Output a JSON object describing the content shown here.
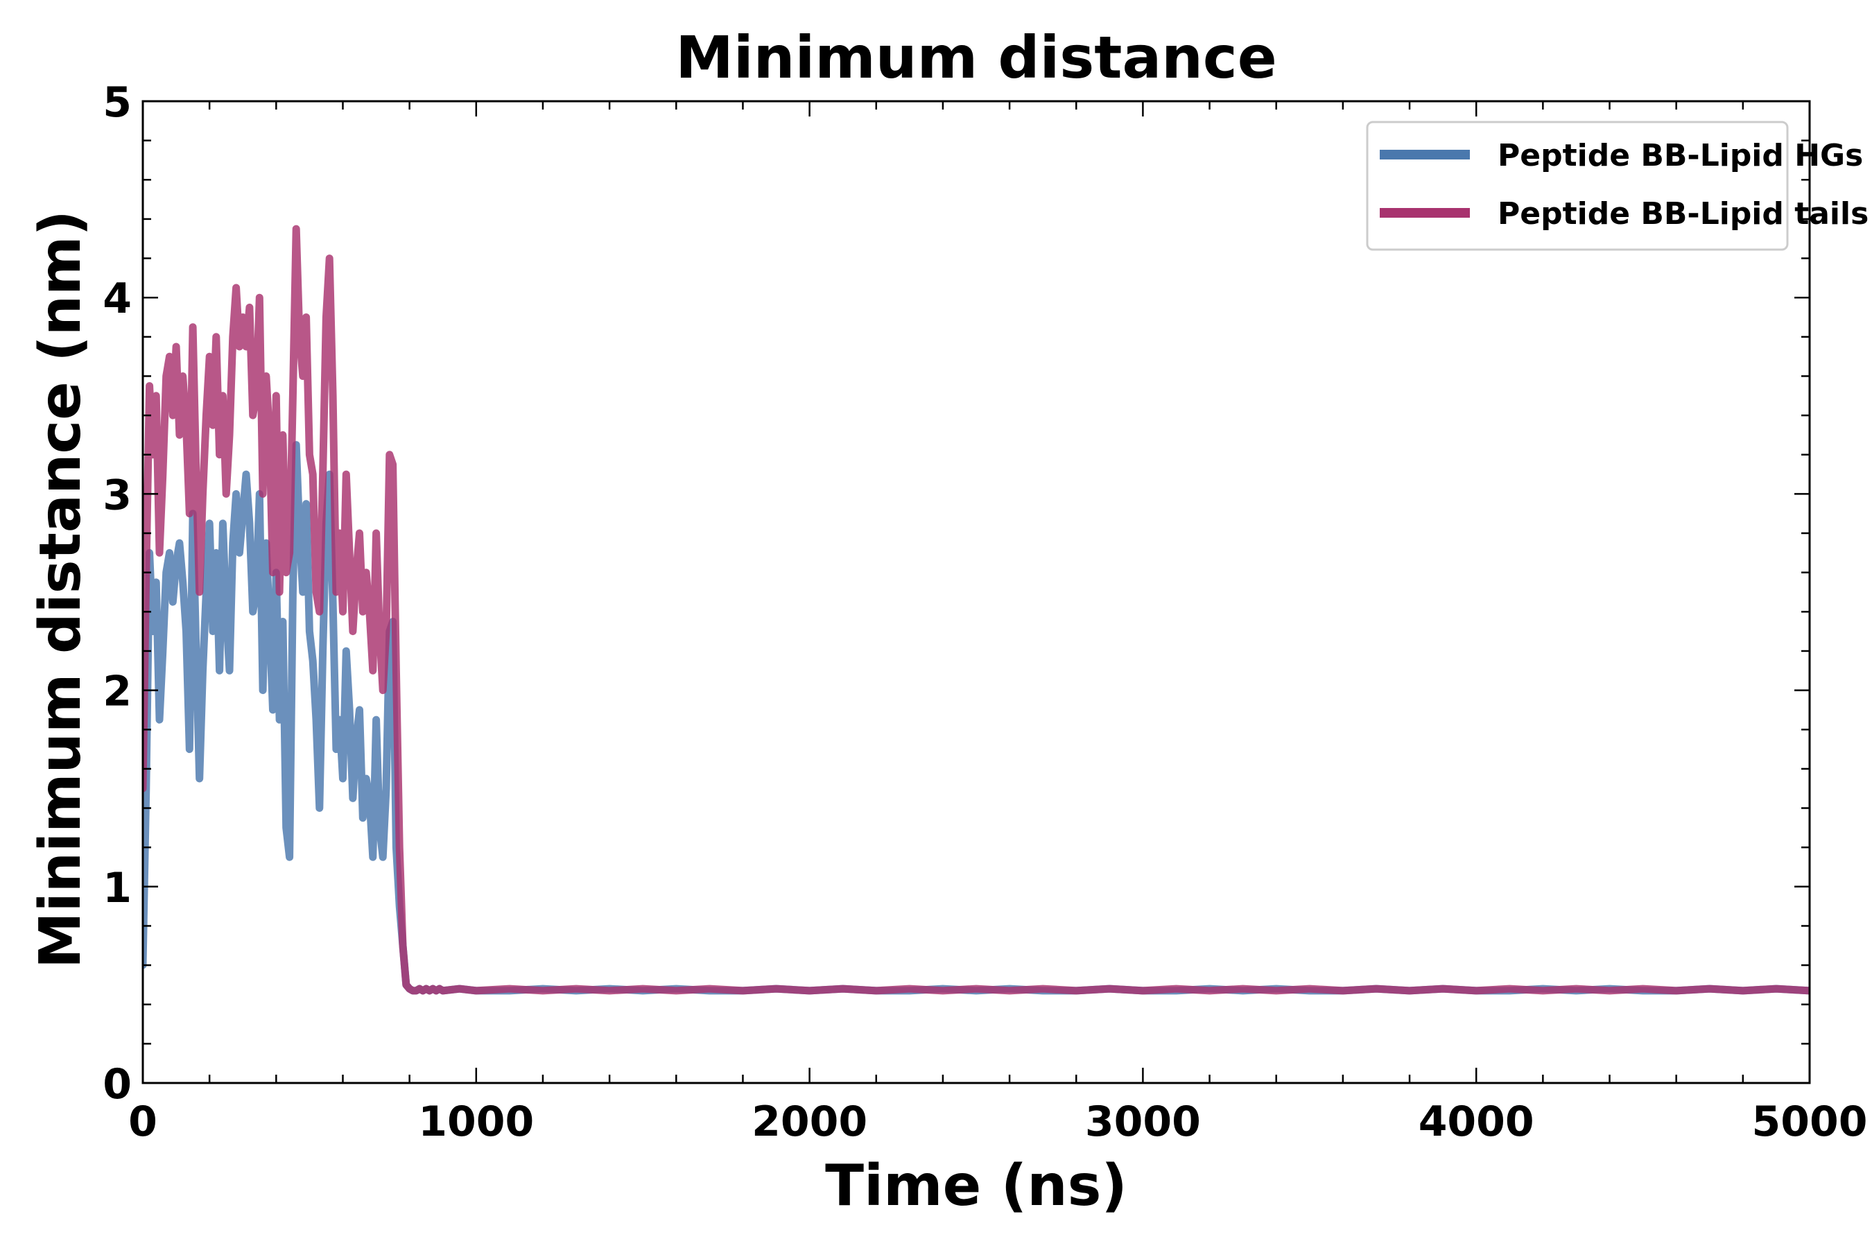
{
  "chart_data": {
    "type": "line",
    "title": "Minimum distance",
    "xlabel": "Time (ns)",
    "ylabel": "Minimum distance (nm)",
    "xlim": [
      0,
      5000
    ],
    "ylim": [
      0,
      5
    ],
    "xticks": [
      0,
      1000,
      2000,
      3000,
      4000,
      5000
    ],
    "xtick_labels": [
      "0",
      "1000",
      "2000",
      "3000",
      "4000",
      "5000"
    ],
    "xminor_step": 200,
    "yticks": [
      0,
      1,
      2,
      3,
      4,
      5
    ],
    "ytick_labels": [
      "0",
      "1",
      "2",
      "3",
      "4",
      "5"
    ],
    "yminor_step": 0.2,
    "grid": false,
    "legend_position": "top-right",
    "series": [
      {
        "name": "Peptide BB-Lipid HGs",
        "color": "#4a78ad",
        "x": [
          0,
          10,
          20,
          30,
          40,
          50,
          60,
          70,
          80,
          90,
          100,
          110,
          120,
          130,
          140,
          150,
          160,
          170,
          180,
          190,
          200,
          210,
          220,
          230,
          240,
          250,
          260,
          270,
          280,
          290,
          300,
          310,
          320,
          330,
          340,
          350,
          360,
          370,
          380,
          390,
          400,
          410,
          420,
          430,
          440,
          450,
          460,
          470,
          480,
          490,
          500,
          510,
          520,
          530,
          540,
          550,
          560,
          570,
          580,
          590,
          600,
          610,
          620,
          630,
          640,
          650,
          660,
          670,
          680,
          690,
          700,
          710,
          720,
          730,
          740,
          750,
          760,
          770,
          780,
          790,
          800,
          810,
          820,
          830,
          840,
          850,
          860,
          870,
          880,
          890,
          900,
          950,
          1000,
          1100,
          1200,
          1300,
          1400,
          1500,
          1600,
          1700,
          1800,
          1900,
          2000,
          2100,
          2200,
          2300,
          2400,
          2500,
          2600,
          2700,
          2800,
          2900,
          3000,
          3100,
          3200,
          3300,
          3400,
          3500,
          3600,
          3700,
          3800,
          3900,
          4000,
          4100,
          4200,
          4300,
          4400,
          4500,
          4600,
          4700,
          4800,
          4900,
          5000
        ],
        "values": [
          0.6,
          1.5,
          2.7,
          2.3,
          2.55,
          1.85,
          2.2,
          2.6,
          2.7,
          2.45,
          2.65,
          2.75,
          2.55,
          2.3,
          1.7,
          2.9,
          2.2,
          1.55,
          2.1,
          2.5,
          2.85,
          2.3,
          2.7,
          2.1,
          2.85,
          2.4,
          2.1,
          2.75,
          3.0,
          2.7,
          2.9,
          3.1,
          2.85,
          2.4,
          2.5,
          3.0,
          2.0,
          2.75,
          2.35,
          1.9,
          2.6,
          1.85,
          2.35,
          1.3,
          1.15,
          2.5,
          3.25,
          2.8,
          2.5,
          2.95,
          2.3,
          2.15,
          1.85,
          1.4,
          2.2,
          2.85,
          3.1,
          2.45,
          1.7,
          1.85,
          1.55,
          2.2,
          1.9,
          1.45,
          1.75,
          1.9,
          1.35,
          1.55,
          1.45,
          1.15,
          1.85,
          1.3,
          1.15,
          1.5,
          2.3,
          2.35,
          1.2,
          0.9,
          0.7,
          0.5,
          0.48,
          0.47,
          0.47,
          0.48,
          0.47,
          0.48,
          0.47,
          0.48,
          0.47,
          0.48,
          0.47,
          0.48,
          0.47,
          0.47,
          0.48,
          0.47,
          0.48,
          0.47,
          0.48,
          0.47,
          0.47,
          0.48,
          0.47,
          0.48,
          0.47,
          0.47,
          0.48,
          0.47,
          0.48,
          0.47,
          0.47,
          0.48,
          0.47,
          0.47,
          0.48,
          0.47,
          0.48,
          0.47,
          0.47,
          0.48,
          0.47,
          0.48,
          0.47,
          0.47,
          0.48,
          0.47,
          0.48,
          0.47,
          0.47,
          0.48,
          0.47,
          0.48,
          0.47
        ]
      },
      {
        "name": "Peptide BB-Lipid tails",
        "color": "#a8326e",
        "x": [
          0,
          10,
          20,
          30,
          40,
          50,
          60,
          70,
          80,
          90,
          100,
          110,
          120,
          130,
          140,
          150,
          160,
          170,
          180,
          190,
          200,
          210,
          220,
          230,
          240,
          250,
          260,
          270,
          280,
          290,
          300,
          310,
          320,
          330,
          340,
          350,
          360,
          370,
          380,
          390,
          400,
          410,
          420,
          430,
          440,
          450,
          460,
          470,
          480,
          490,
          500,
          510,
          520,
          530,
          540,
          550,
          560,
          570,
          580,
          590,
          600,
          610,
          620,
          630,
          640,
          650,
          660,
          670,
          680,
          690,
          700,
          710,
          720,
          730,
          740,
          750,
          760,
          770,
          780,
          790,
          800,
          810,
          820,
          830,
          840,
          850,
          860,
          870,
          880,
          890,
          900,
          950,
          1000,
          1100,
          1200,
          1300,
          1400,
          1500,
          1600,
          1700,
          1800,
          1900,
          2000,
          2100,
          2200,
          2300,
          2400,
          2500,
          2600,
          2700,
          2800,
          2900,
          3000,
          3100,
          3200,
          3300,
          3400,
          3500,
          3600,
          3700,
          3800,
          3900,
          4000,
          4100,
          4200,
          4300,
          4400,
          4500,
          4600,
          4700,
          4800,
          4900,
          5000
        ],
        "values": [
          1.5,
          2.6,
          3.55,
          3.2,
          3.5,
          2.7,
          3.1,
          3.6,
          3.7,
          3.4,
          3.75,
          3.3,
          3.6,
          3.35,
          2.9,
          3.85,
          3.1,
          2.5,
          3.0,
          3.4,
          3.7,
          3.35,
          3.8,
          3.2,
          3.5,
          3.0,
          3.3,
          3.8,
          4.05,
          3.75,
          3.9,
          3.75,
          3.95,
          3.4,
          3.5,
          4.0,
          3.0,
          3.6,
          3.3,
          2.6,
          3.5,
          2.5,
          3.3,
          2.6,
          2.7,
          3.5,
          4.35,
          3.8,
          3.6,
          3.9,
          3.2,
          3.1,
          2.5,
          2.4,
          3.1,
          3.9,
          4.2,
          3.5,
          2.5,
          2.8,
          2.4,
          3.1,
          2.7,
          2.3,
          2.6,
          2.8,
          2.4,
          2.6,
          2.4,
          2.1,
          2.8,
          2.3,
          2.0,
          2.3,
          3.2,
          3.15,
          2.1,
          1.2,
          0.7,
          0.5,
          0.48,
          0.47,
          0.47,
          0.48,
          0.47,
          0.48,
          0.47,
          0.48,
          0.47,
          0.48,
          0.47,
          0.48,
          0.47,
          0.48,
          0.47,
          0.48,
          0.47,
          0.48,
          0.47,
          0.48,
          0.47,
          0.48,
          0.47,
          0.48,
          0.47,
          0.48,
          0.47,
          0.48,
          0.47,
          0.48,
          0.47,
          0.48,
          0.47,
          0.48,
          0.47,
          0.48,
          0.47,
          0.48,
          0.47,
          0.48,
          0.47,
          0.48,
          0.47,
          0.48,
          0.47,
          0.48,
          0.47,
          0.48,
          0.47,
          0.48,
          0.47,
          0.48,
          0.47
        ]
      }
    ]
  }
}
